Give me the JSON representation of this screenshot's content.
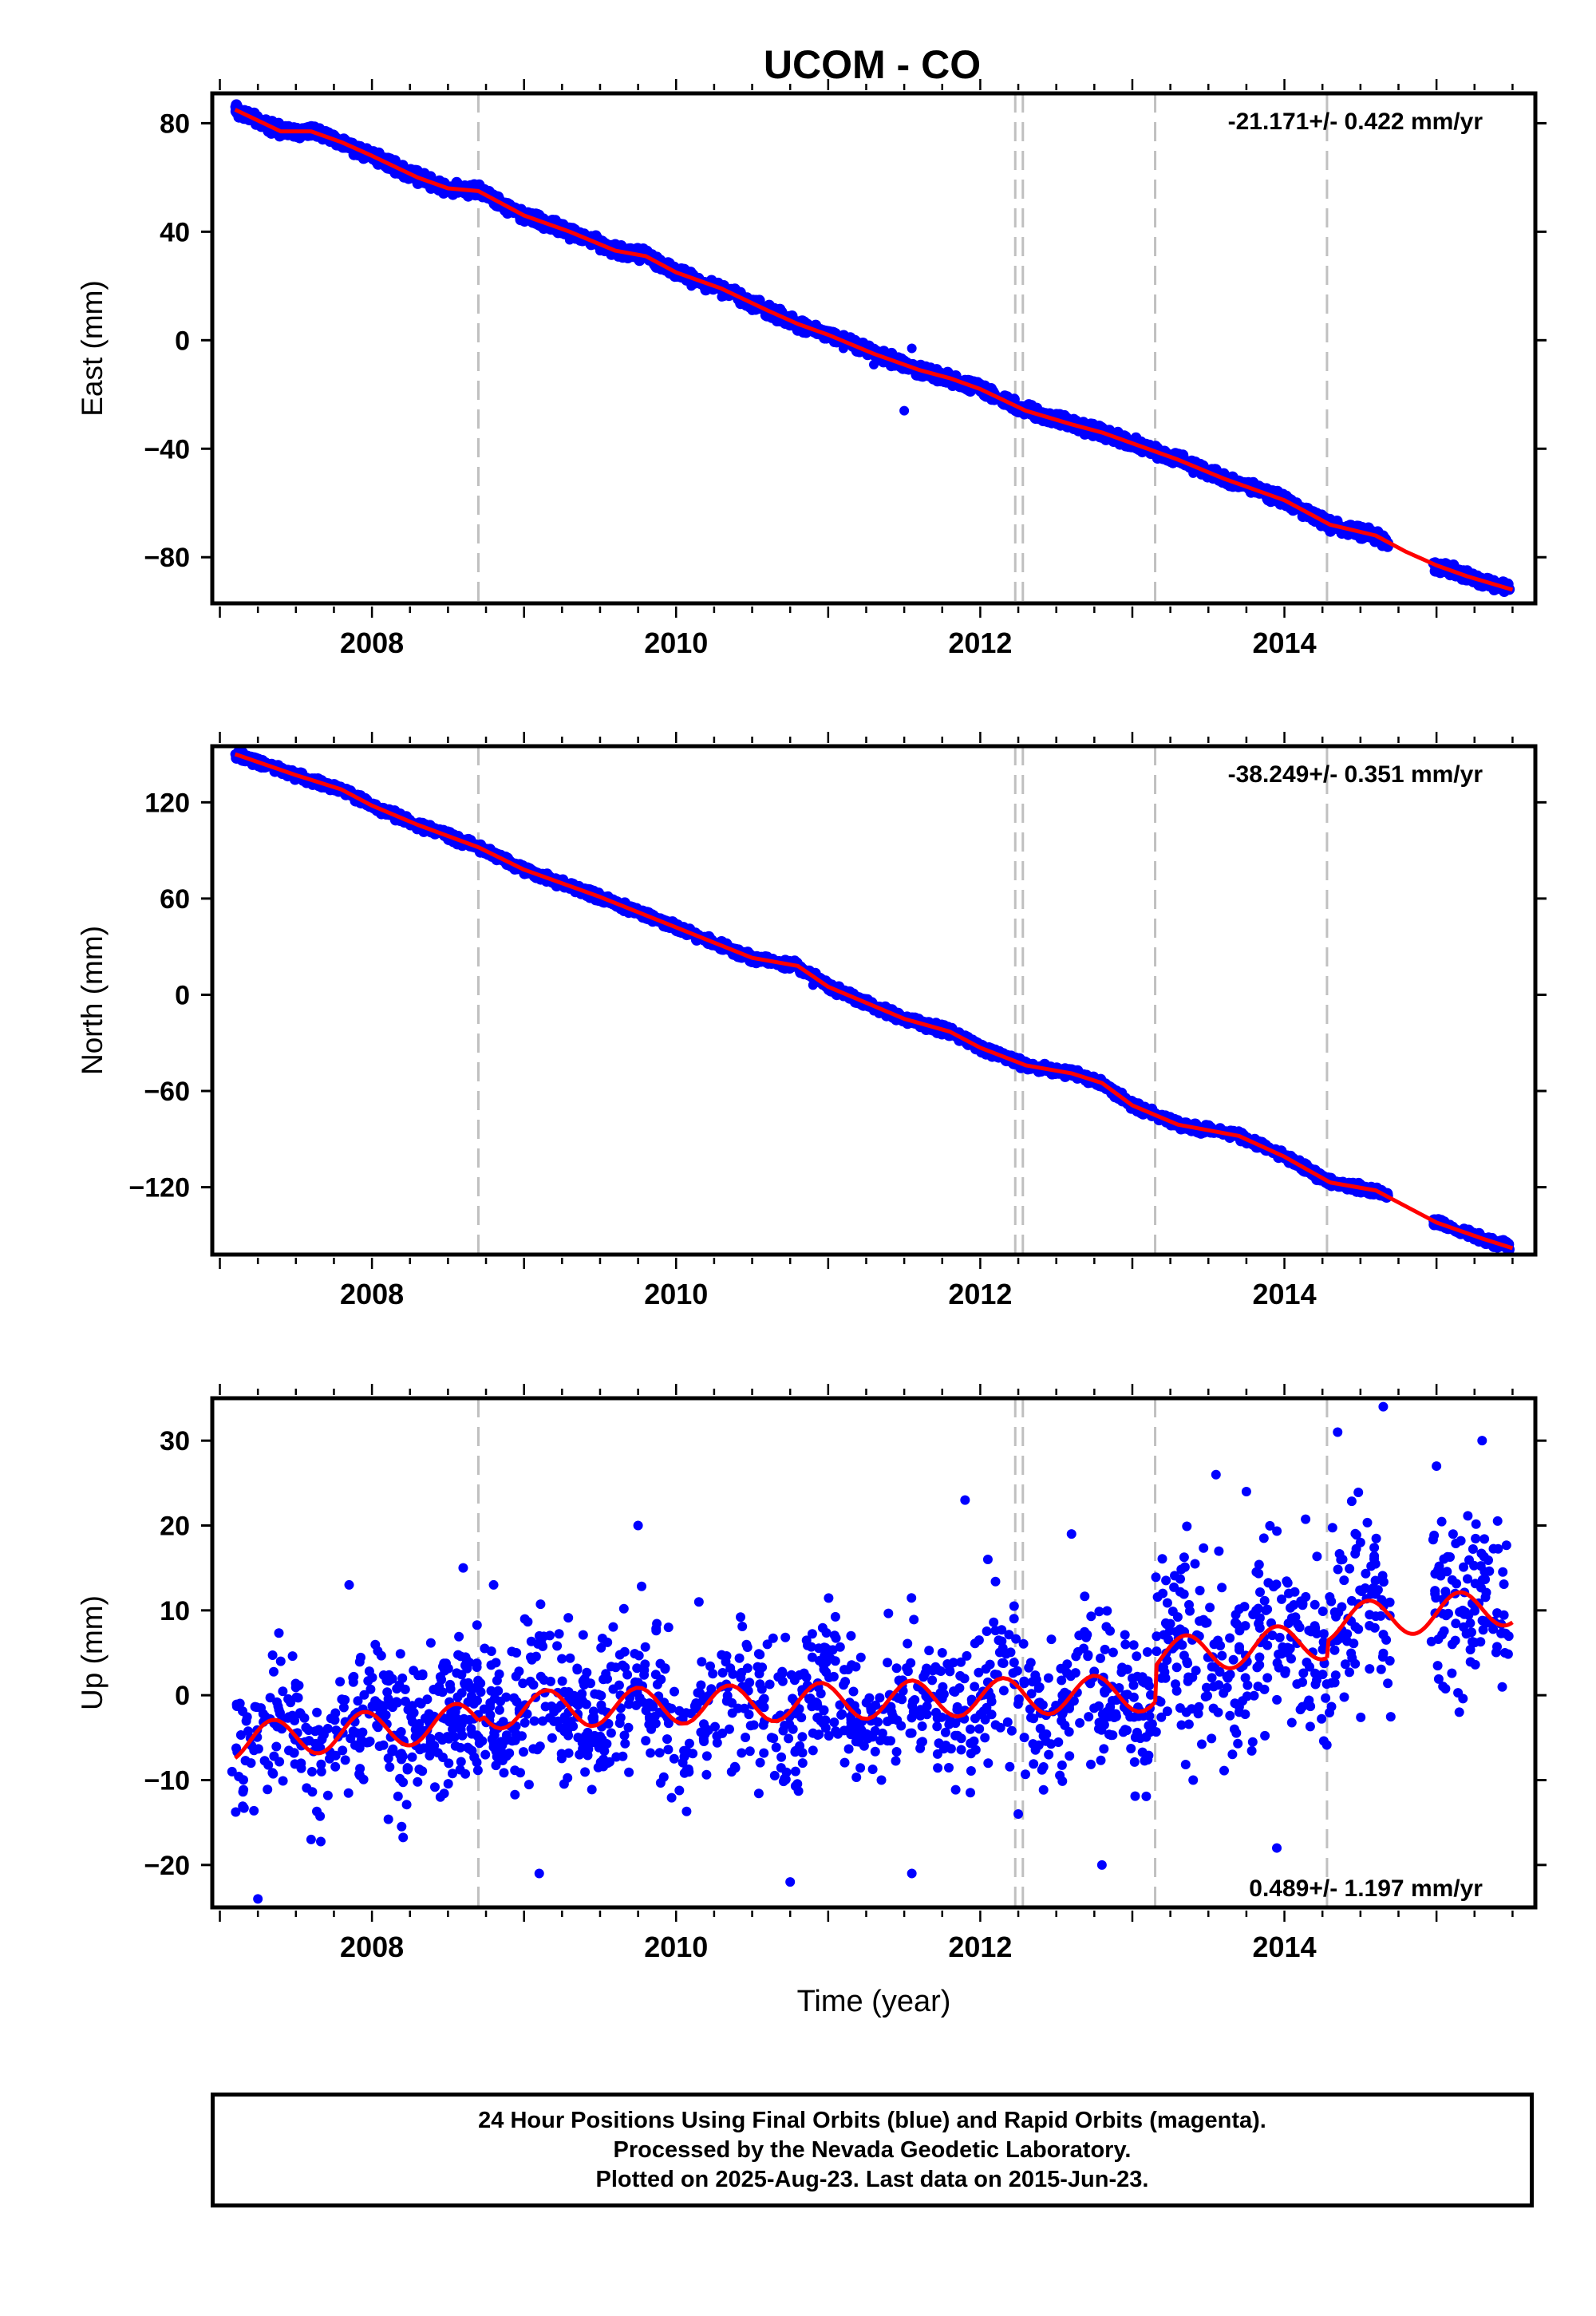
{
  "title": "UCOM - CO",
  "colors": {
    "points": "#0000ff",
    "fit": "#ff0000",
    "steps": "#c0c0c0",
    "axis": "#000000"
  },
  "footer": {
    "line1": "24 Hour Positions Using Final Orbits (blue) and Rapid Orbits (magenta).",
    "line2": "Processed by the Nevada Geodetic Laboratory.",
    "line3": "Plotted on 2025-Aug-23. Last data on 2015-Jun-23."
  },
  "chart_data": [
    {
      "type": "scatter",
      "name": "east",
      "ylabel": "East (mm)",
      "xlabel": "",
      "rate_label": "-21.171+/- 0.422 mm/yr",
      "rate_position": "top-right",
      "xlim": [
        2006.95,
        2015.65
      ],
      "ylim": [
        -97,
        91
      ],
      "yticks": [
        -80,
        -40,
        0,
        40,
        80
      ],
      "yticklabels": [
        "−80",
        "−40",
        "0",
        "40",
        "80"
      ],
      "xticks": [
        2008,
        2010,
        2012,
        2014
      ],
      "xticklabels": [
        "2008",
        "2010",
        "2012",
        "2014"
      ],
      "step_lines": [
        2008.7,
        2012.23,
        2012.28,
        2013.15,
        2014.28
      ],
      "fit_curve": {
        "x": [
          2007.1,
          2007.4,
          2007.6,
          2007.8,
          2008.0,
          2008.3,
          2008.5,
          2008.7,
          2009.0,
          2009.3,
          2009.6,
          2009.8,
          2010.0,
          2010.3,
          2010.6,
          2010.8,
          2011.0,
          2011.3,
          2011.6,
          2011.8,
          2012.0,
          2012.3,
          2012.6,
          2012.8,
          2013.0,
          2013.3,
          2013.6,
          2013.8,
          2014.0,
          2014.3,
          2014.6,
          2014.8,
          2015.0,
          2015.2,
          2015.5
        ],
        "y": [
          85,
          77,
          77,
          73,
          68,
          60,
          56,
          55,
          46,
          40,
          33,
          31,
          25,
          19,
          11,
          6,
          2,
          -5,
          -11,
          -14,
          -18,
          -26,
          -31,
          -34,
          -38,
          -44,
          -51,
          -55,
          -59,
          -68,
          -72,
          -78,
          -83,
          -87,
          -92
        ]
      },
      "points": {
        "x": [
          2007.1,
          2007.2,
          2007.3,
          2007.5,
          2007.7,
          2007.9,
          2008.1,
          2008.3,
          2008.5,
          2008.7,
          2008.9,
          2009.1,
          2009.3,
          2009.5,
          2009.7,
          2009.9,
          2010.1,
          2010.3,
          2010.5,
          2010.7,
          2010.9,
          2011.1,
          2011.3,
          2011.5,
          2011.55,
          2011.6,
          2011.8,
          2012.0,
          2012.2,
          2012.4,
          2012.6,
          2012.8,
          2013.0,
          2013.2,
          2013.4,
          2013.6,
          2013.8,
          2014.0,
          2014.2,
          2014.4,
          2014.6,
          2015.0,
          2015.2,
          2015.4
        ],
        "y": [
          86,
          84,
          80,
          77,
          76,
          70,
          66,
          61,
          56,
          56,
          48,
          43,
          37,
          33,
          33,
          26,
          20,
          16,
          11,
          10,
          3,
          -3,
          -9,
          -26,
          -3,
          -10,
          -13,
          -19,
          -23,
          -27,
          -30,
          -34,
          -38,
          -43,
          -49,
          -51,
          -55,
          -60,
          -67,
          -70,
          -71,
          -84,
          -88,
          -90
        ]
      }
    },
    {
      "type": "scatter",
      "name": "north",
      "ylabel": "North (mm)",
      "xlabel": "",
      "rate_label": "-38.249+/- 0.351 mm/yr",
      "rate_position": "top-right",
      "xlim": [
        2006.95,
        2015.65
      ],
      "ylim": [
        -162,
        155
      ],
      "yticks": [
        -120,
        -60,
        0,
        60,
        120
      ],
      "yticklabels": [
        "−120",
        "−60",
        "0",
        "60",
        "120"
      ],
      "xticks": [
        2008,
        2010,
        2012,
        2014
      ],
      "xticklabels": [
        "2008",
        "2010",
        "2012",
        "2014"
      ],
      "step_lines": [
        2008.7,
        2012.23,
        2012.28,
        2013.15,
        2014.28
      ],
      "fit_curve": {
        "x": [
          2007.1,
          2007.5,
          2007.8,
          2008.0,
          2008.3,
          2008.7,
          2009.0,
          2009.5,
          2010.0,
          2010.5,
          2010.8,
          2011.0,
          2011.5,
          2011.8,
          2012.0,
          2012.3,
          2012.6,
          2012.8,
          2013.0,
          2013.3,
          2013.7,
          2014.0,
          2014.3,
          2014.6,
          2015.0,
          2015.3,
          2015.5
        ],
        "y": [
          150,
          137,
          128,
          118,
          106,
          92,
          78,
          61,
          42,
          23,
          18,
          5,
          -15,
          -23,
          -33,
          -44,
          -49,
          -55,
          -69,
          -81,
          -88,
          -101,
          -117,
          -122,
          -142,
          -152,
          -158
        ]
      },
      "points": {
        "x": [
          2007.1,
          2007.3,
          2007.5,
          2007.7,
          2007.9,
          2008.1,
          2008.3,
          2008.5,
          2008.7,
          2008.9,
          2009.1,
          2009.3,
          2009.5,
          2009.7,
          2009.9,
          2010.1,
          2010.3,
          2010.5,
          2010.7,
          2010.9,
          2011.1,
          2011.3,
          2011.5,
          2011.7,
          2011.9,
          2012.1,
          2012.3,
          2012.5,
          2012.7,
          2012.9,
          2013.1,
          2013.3,
          2013.5,
          2013.7,
          2013.9,
          2014.1,
          2014.3,
          2014.5,
          2014.6,
          2015.0,
          2015.2,
          2015.4
        ],
        "y": [
          150,
          144,
          138,
          132,
          122,
          113,
          107,
          102,
          93,
          82,
          73,
          66,
          62,
          55,
          45,
          38,
          28,
          23,
          18,
          6,
          -1,
          -10,
          -14,
          -20,
          -28,
          -34,
          -42,
          -46,
          -52,
          -60,
          -72,
          -78,
          -83,
          -85,
          -95,
          -103,
          -114,
          -118,
          -122,
          -142,
          -148,
          -155
        ]
      }
    },
    {
      "type": "scatter",
      "name": "up",
      "ylabel": "Up (mm)",
      "xlabel": "Time (year)",
      "rate_label": "0.489+/- 1.197 mm/yr",
      "rate_position": "bottom-right",
      "xlim": [
        2006.95,
        2015.65
      ],
      "ylim": [
        -25,
        35
      ],
      "yticks": [
        -20,
        -10,
        0,
        10,
        20,
        30
      ],
      "yticklabels": [
        "−20",
        "−10",
        "0",
        "10",
        "20",
        "30"
      ],
      "xticks": [
        2008,
        2010,
        2012,
        2014
      ],
      "xticklabels": [
        "2008",
        "2010",
        "2012",
        "2014"
      ],
      "step_lines": [
        2008.7,
        2012.23,
        2012.28,
        2013.15,
        2014.28
      ],
      "fit_curve": {
        "mean_segments": [
          {
            "x0": 2007.1,
            "x1": 2008.7,
            "y0": -5.5,
            "y1": -3.0
          },
          {
            "x0": 2008.7,
            "x1": 2013.15,
            "y0": -1.8,
            "y1": 0.3
          },
          {
            "x0": 2013.15,
            "x1": 2014.28,
            "y0": 4.5,
            "y1": 6.5
          },
          {
            "x0": 2014.28,
            "x1": 2015.5,
            "y0": 8.5,
            "y1": 10.5
          }
        ],
        "amplitude": 2.2,
        "period_years": 0.6
      },
      "points": {
        "x": [
          2007.08,
          2007.25,
          2007.4,
          2007.6,
          2007.85,
          2008.05,
          2008.2,
          2008.45,
          2008.6,
          2008.8,
          2008.95,
          2009.1,
          2009.35,
          2009.55,
          2009.75,
          2009.95,
          2010.15,
          2010.35,
          2010.6,
          2010.75,
          2010.95,
          2011.15,
          2011.35,
          2011.55,
          2011.75,
          2011.9,
          2012.05,
          2012.25,
          2012.45,
          2012.6,
          2012.8,
          2013.0,
          2013.2,
          2013.4,
          2013.55,
          2013.75,
          2013.95,
          2014.1,
          2014.35,
          2014.5,
          2014.65,
          2015.0,
          2015.15,
          2015.3,
          2015.45
        ],
        "y": [
          -9,
          -24,
          4,
          -17,
          13,
          -6,
          2,
          -12,
          15,
          13,
          5,
          -21,
          3,
          -8,
          20,
          8,
          11,
          -4,
          6,
          -22,
          -3,
          7,
          -10,
          -21,
          5,
          23,
          16,
          -14,
          -7,
          19,
          -20,
          2,
          12,
          -10,
          26,
          24,
          -18,
          8,
          31,
          18,
          34,
          27,
          -2,
          30,
          5
        ]
      }
    }
  ]
}
